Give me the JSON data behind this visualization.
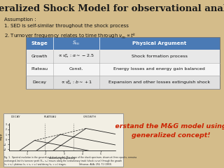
{
  "title": "Generalized Shock Model for observational analysis",
  "background_color": "#d4bc8a",
  "title_fontsize": 9.5,
  "assumption_text": "Assumption :\n1. SED is self-similar throughout the shock process\n2. Turnover frequency relates to time through $\\nu_{m} \\propto t^{k}$",
  "assumption_fontsize": 5.0,
  "table_header": [
    "Stage",
    "$S_{m}$",
    "Physical Argument"
  ],
  "table_rows": [
    [
      "Growth",
      "$\\propto \\nu_{m}^{\\alpha}$ : $\\alpha\\sim -2.5$",
      "Shock formation process"
    ],
    [
      "Plateau",
      "Const.",
      "Energy losses and energy gain balanced"
    ],
    [
      "Decay",
      "$\\propto \\nu_{m}^{b}$ : $b\\sim +1$",
      "Expansion and other losses extinguish shock"
    ]
  ],
  "header_color": "#4a7ab5",
  "header_text_color": "#ffffff",
  "row_colors": [
    "#e8e8e8",
    "#f5f5f5",
    "#e0e0e0"
  ],
  "highlight_text": "Understand the M&G model using this\ngeneralized concept!",
  "highlight_color": "#cc2200",
  "figure_bg_color": "#f2efe4",
  "figure_border_color": "#999999",
  "caption_text": "Fig. 1.  Spectral evolution in the generalized shock model. The shape of the\nshock spectrum, shown at three epochs, remains unchanged, but its turnover\npeak (S_m, v_m) moves along the evolutionary track (shock curve) through the\ngrowth (v_a = v_s), plateau (v_1 = v_a = v_s) and decay (v_1 = v_s) stages. The ap-\npearance of the shock to an observer depends on whether the monitoring\nfrequencies are below v_s (in high-peaking flux: v_1 > v_s between v_1 and v_s, (v_1)_0 or\nabove v_s in low-peaking flux: v_1 < v_s)       Valvanus, A&A, 254, 71 (1993)."
}
